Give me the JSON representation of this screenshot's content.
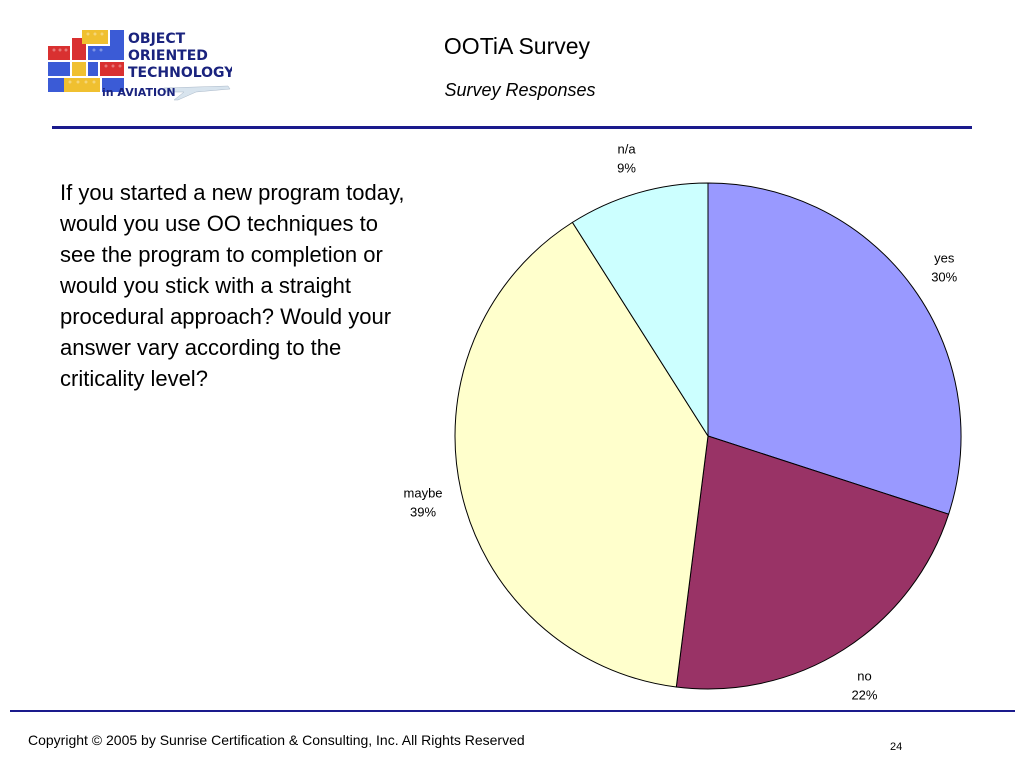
{
  "header": {
    "title": "OOTiA Survey",
    "subtitle": "Survey Responses",
    "logo": {
      "line1": "OBJECT",
      "line2": "ORIENTED",
      "line3": "TECHNOLOGY",
      "line4": "in AVIATION"
    }
  },
  "question": "If you started a new program today, would you use OO techniques to see the program to completion or would you stick with a straight procedural approach?  Would your answer vary according to the criticality level?",
  "chart_data": {
    "type": "pie",
    "slices": [
      {
        "label": "yes",
        "value": 30,
        "value_label": "30%",
        "color": "#9999ff"
      },
      {
        "label": "no",
        "value": 22,
        "value_label": "22%",
        "color": "#993366"
      },
      {
        "label": "maybe",
        "value": 39,
        "value_label": "39%",
        "color": "#ffffcc"
      },
      {
        "label": "n/a",
        "value": 9,
        "value_label": "9%",
        "color": "#ccffff"
      }
    ],
    "start": "12 o'clock",
    "direction": "clockwise",
    "legend": "none"
  },
  "footer": {
    "copyright": "Copyright © 2005 by Sunrise Certification & Consulting, Inc.  All Rights Reserved",
    "page_number": "24"
  },
  "colors": {
    "rule": "#1a1a8c"
  }
}
